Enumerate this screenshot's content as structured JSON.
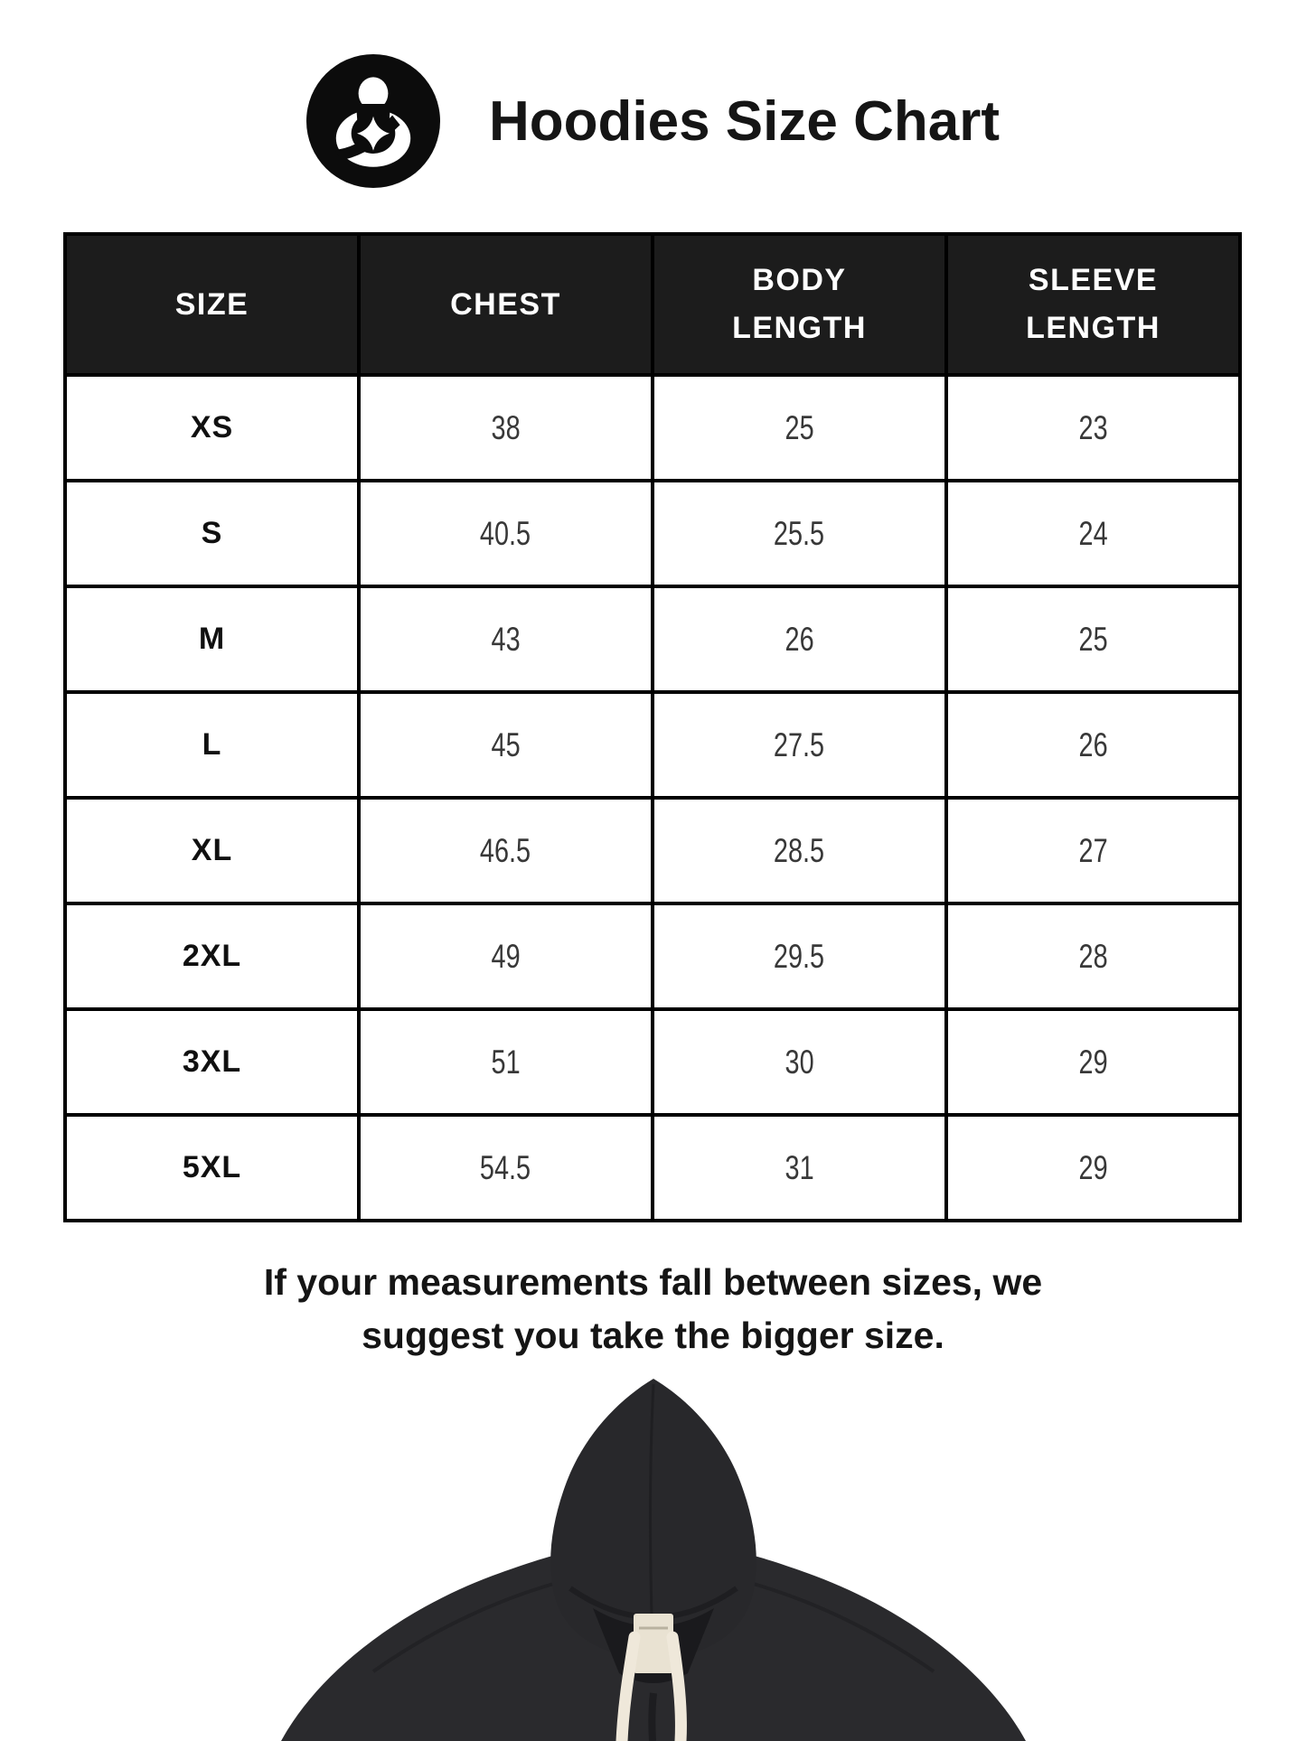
{
  "page_title": "Hoodies Size Chart",
  "logo": {
    "name": "brand-logo",
    "description": "black circular emblem of a figure holding a four-pointed star"
  },
  "size_chart": {
    "columns": [
      "SIZE",
      "CHEST",
      "BODY LENGTH",
      "SLEEVE LENGTH"
    ],
    "rows": [
      [
        "XS",
        "38",
        "25",
        "23"
      ],
      [
        "S",
        "40.5",
        "25.5",
        "24"
      ],
      [
        "M",
        "43",
        "26",
        "25"
      ],
      [
        "L",
        "45",
        "27.5",
        "26"
      ],
      [
        "XL",
        "46.5",
        "28.5",
        "27"
      ],
      [
        "2XL",
        "49",
        "29.5",
        "28"
      ],
      [
        "3XL",
        "51",
        "30",
        "29"
      ],
      [
        "5XL",
        "54.5",
        "31",
        "29"
      ]
    ]
  },
  "note": {
    "line1": "If your measurements fall between sizes, we",
    "line2": "suggest you take the bigger size."
  },
  "hoodie_image": {
    "name": "black-hoodie-photo",
    "description": "black pullover hoodie with cream drawstrings"
  },
  "colors": {
    "header_bg": "#1c1c1c",
    "header_text": "#ffffff",
    "border": "#000000",
    "text": "#151515",
    "hoodie_fabric": "#2a2a2d",
    "hoodie_hood": "#28282b",
    "hoodie_interior": "#1a1a1d",
    "drawstring": "#efe8da",
    "label": "#e9e2d2"
  }
}
